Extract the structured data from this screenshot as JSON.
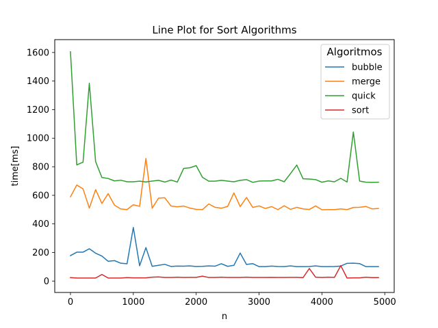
{
  "chart_data": {
    "type": "line",
    "title": "Line Plot for Sort Algorithms",
    "xlabel": "n",
    "ylabel": "time[ms]",
    "xlim": [
      -250,
      5150
    ],
    "ylim": [
      -80,
      1690
    ],
    "xticks": [
      0,
      1000,
      2000,
      3000,
      4000,
      5000
    ],
    "yticks": [
      0,
      200,
      400,
      600,
      800,
      1000,
      1200,
      1400,
      1600
    ],
    "grid": false,
    "legend": {
      "title": "Algoritmos",
      "position": "top-right"
    },
    "x": [
      0,
      100,
      200,
      300,
      400,
      500,
      600,
      700,
      800,
      900,
      1000,
      1100,
      1200,
      1300,
      1400,
      1500,
      1600,
      1700,
      1800,
      1900,
      2000,
      2100,
      2200,
      2300,
      2400,
      2500,
      2600,
      2700,
      2800,
      2900,
      3000,
      3100,
      3200,
      3300,
      3400,
      3500,
      3600,
      3700,
      3800,
      3900,
      4000,
      4100,
      4200,
      4300,
      4400,
      4500,
      4600,
      4700,
      4800,
      4900
    ],
    "series": [
      {
        "name": "bubble",
        "color": "#1f77b4",
        "values": [
          178,
          202,
          202,
          226,
          195,
          175,
          138,
          143,
          125,
          121,
          375,
          107,
          234,
          103,
          110,
          117,
          102,
          105,
          104,
          106,
          102,
          103,
          106,
          104,
          121,
          103,
          110,
          196,
          116,
          122,
          101,
          101,
          105,
          102,
          101,
          106,
          101,
          101,
          102,
          106,
          101,
          101,
          102,
          105,
          124,
          125,
          122,
          101,
          101,
          101
        ]
      },
      {
        "name": "merge",
        "color": "#ff7f0e",
        "values": [
          590,
          672,
          645,
          511,
          640,
          543,
          612,
          531,
          505,
          500,
          534,
          523,
          858,
          510,
          580,
          583,
          525,
          520,
          525,
          511,
          502,
          500,
          540,
          516,
          510,
          522,
          617,
          521,
          585,
          515,
          526,
          508,
          521,
          500,
          527,
          502,
          516,
          505,
          501,
          526,
          499,
          500,
          500,
          505,
          500,
          515,
          516,
          522,
          505,
          508
        ]
      },
      {
        "name": "quick",
        "color": "#2ca02c",
        "values": [
          1605,
          813,
          832,
          1385,
          836,
          725,
          718,
          701,
          706,
          695,
          695,
          699,
          694,
          700,
          705,
          693,
          707,
          693,
          788,
          793,
          808,
          726,
          699,
          699,
          705,
          700,
          695,
          705,
          710,
          691,
          700,
          701,
          701,
          712,
          695,
          752,
          812,
          716,
          714,
          710,
          692,
          701,
          695,
          719,
          693,
          1043,
          700,
          692,
          691,
          692
        ]
      },
      {
        "name": "sort",
        "color": "#d62728",
        "values": [
          24,
          21,
          21,
          21,
          21,
          46,
          21,
          21,
          21,
          24,
          22,
          22,
          22,
          27,
          29,
          25,
          25,
          27,
          25,
          26,
          26,
          34,
          25,
          25,
          27,
          25,
          25,
          25,
          27,
          25,
          25,
          25,
          26,
          25,
          25,
          26,
          26,
          24,
          88,
          27,
          25,
          27,
          26,
          108,
          21,
          22,
          22,
          27,
          24,
          24
        ]
      }
    ]
  }
}
